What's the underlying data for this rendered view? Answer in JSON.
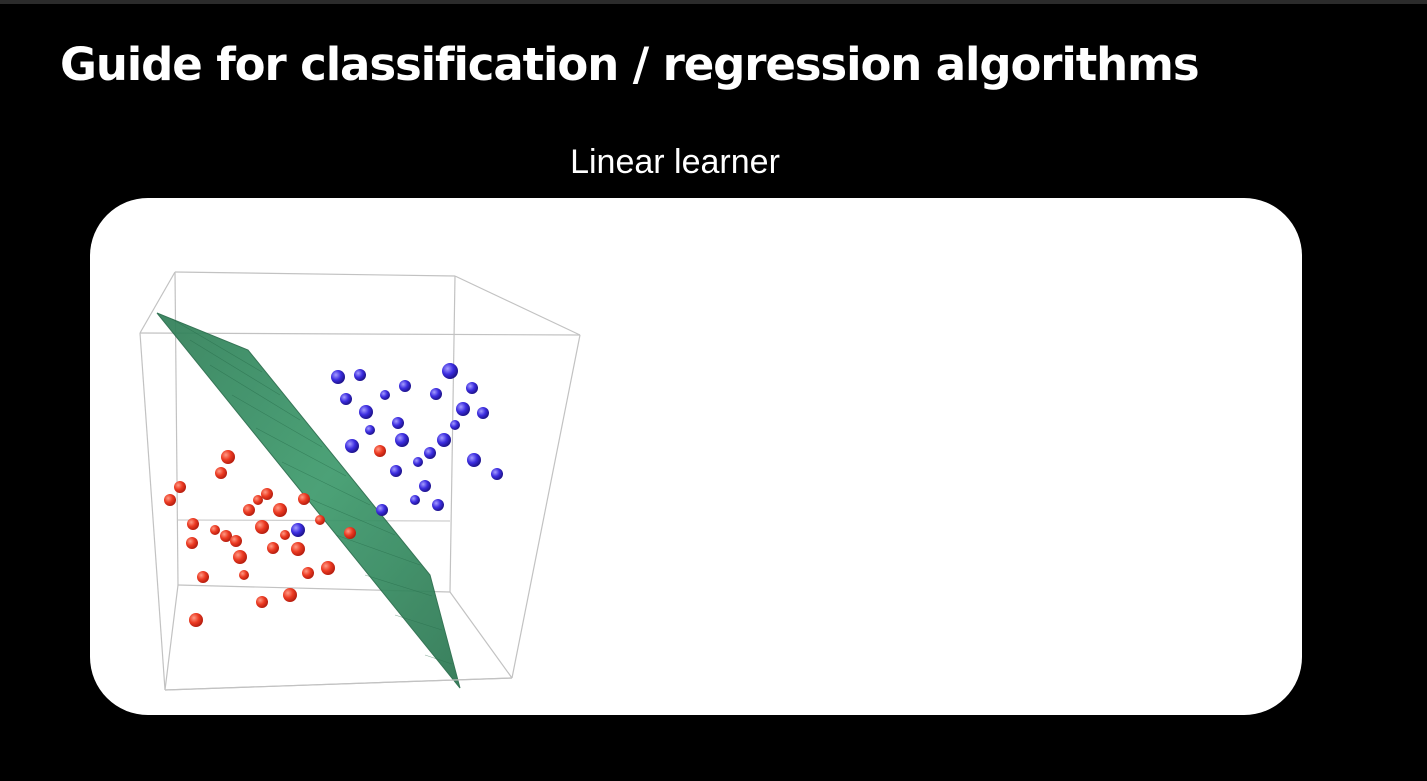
{
  "slide": {
    "title": "Guide for classification / regression algorithms",
    "subtitle": "Linear learner"
  },
  "colors": {
    "background": "#000000",
    "card": "#ffffff",
    "class_a": "#e8321e",
    "class_b": "#3b2bdc",
    "separating_plane": "#2e8a5e"
  },
  "illustration": {
    "type": "3d-scatter",
    "class_a_count": 29,
    "class_b_count": 27,
    "has_separating_plane": true
  }
}
